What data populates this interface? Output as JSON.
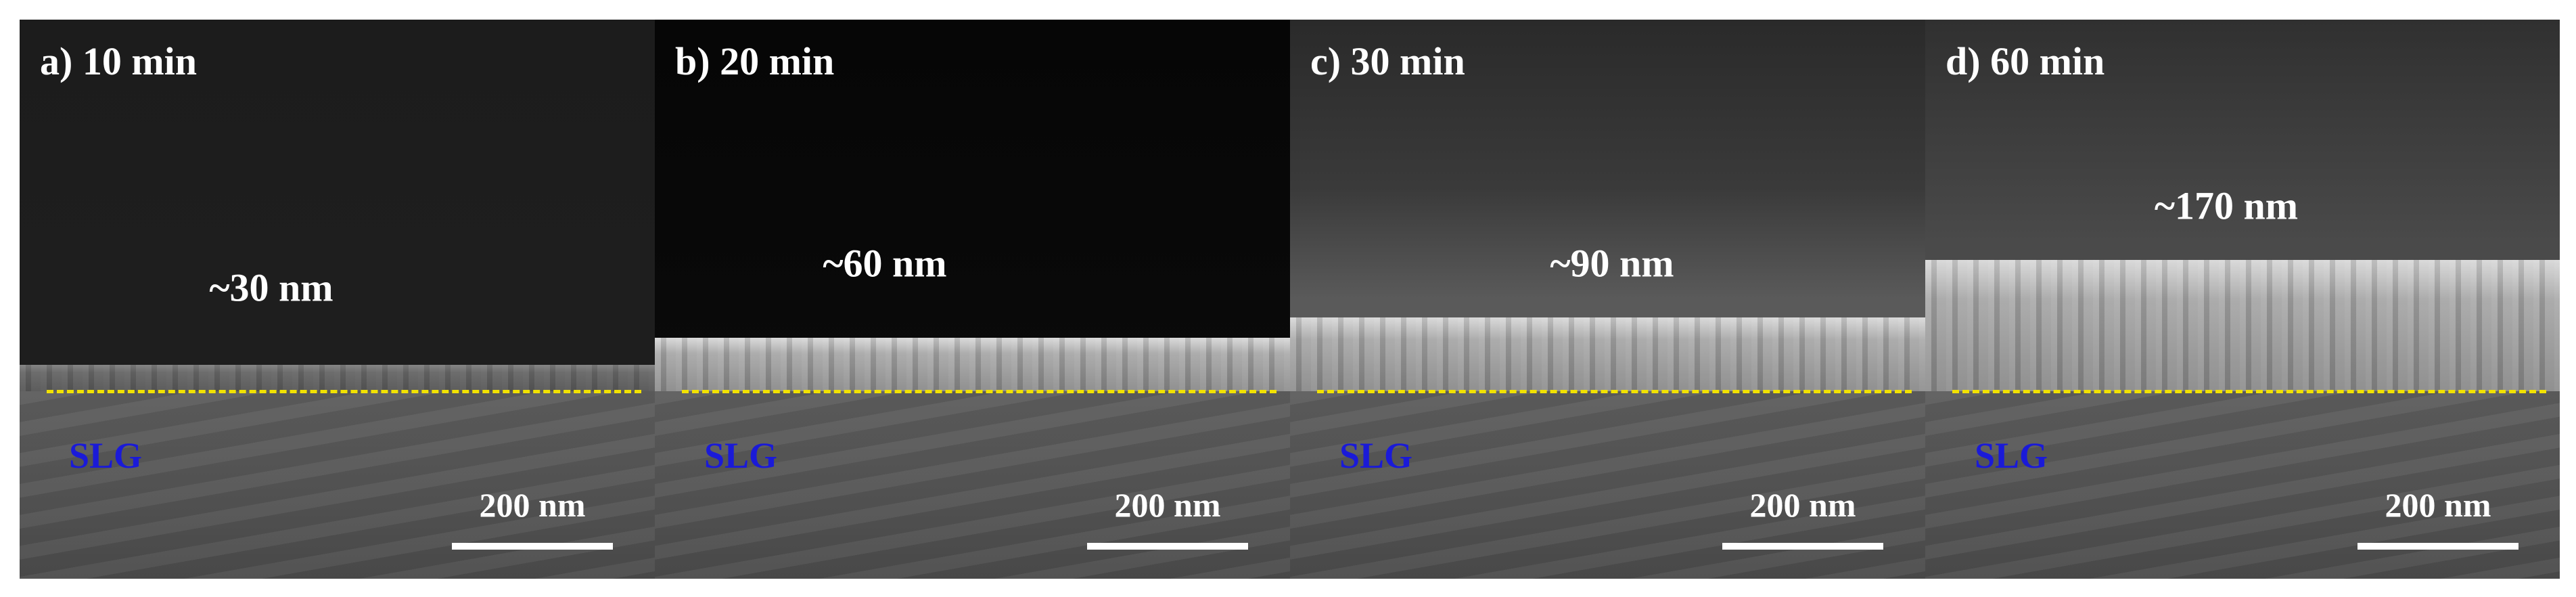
{
  "panels": [
    {
      "label": "a) 10 min",
      "thickness": "~30 nm",
      "substrate": "SLG",
      "scale_bar": "200 nm"
    },
    {
      "label": "b) 20 min",
      "thickness": "~60 nm",
      "substrate": "SLG",
      "scale_bar": "200 nm"
    },
    {
      "label": "c) 30 min",
      "thickness": "~90 nm",
      "substrate": "SLG",
      "scale_bar": "200 nm"
    },
    {
      "label": "d) 60 min",
      "thickness": "~170 nm",
      "substrate": "SLG",
      "scale_bar": "200 nm"
    }
  ]
}
